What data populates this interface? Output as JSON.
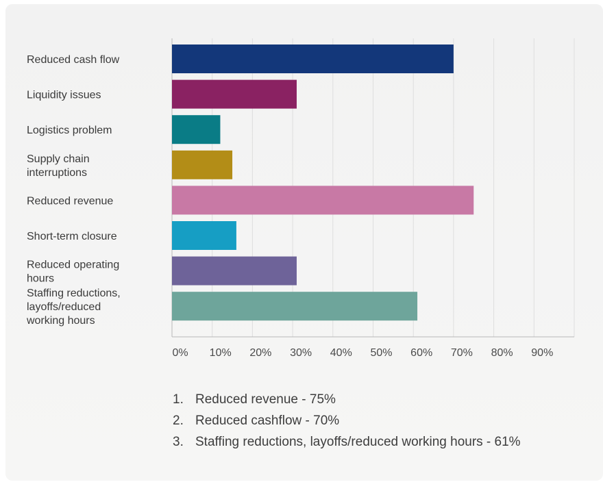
{
  "chart_data": {
    "type": "bar",
    "orientation": "horizontal",
    "categories": [
      [
        "Reduced cash flow"
      ],
      [
        "Liquidity issues"
      ],
      [
        "Logistics problem"
      ],
      [
        "Supply chain",
        "interruptions"
      ],
      [
        "Reduced revenue"
      ],
      [
        "Short-term closure"
      ],
      [
        "Reduced operating",
        "hours"
      ],
      [
        "Staffing reductions,",
        "layoffs/reduced",
        "working hours"
      ]
    ],
    "values": [
      70,
      31,
      12,
      15,
      75,
      16,
      31,
      61
    ],
    "colors": [
      "#13377a",
      "#8a2262",
      "#0a7c86",
      "#b38d17",
      "#c879a5",
      "#169ec4",
      "#6e6399",
      "#6ea59b"
    ],
    "xticks": [
      "0%",
      "10%",
      "20%",
      "30%",
      "40%",
      "50%",
      "60%",
      "70%",
      "80%",
      "90%"
    ],
    "xlim": [
      0,
      100
    ],
    "grid": true,
    "title": "",
    "xlabel": "",
    "ylabel": ""
  },
  "notes": [
    {
      "num": "1.",
      "text": "Reduced revenue - 75%"
    },
    {
      "num": "2.",
      "text": "Reduced cashflow - 70%"
    },
    {
      "num": "3.",
      "text": "Staffing reductions, layoffs/reduced working hours - 61%"
    }
  ]
}
